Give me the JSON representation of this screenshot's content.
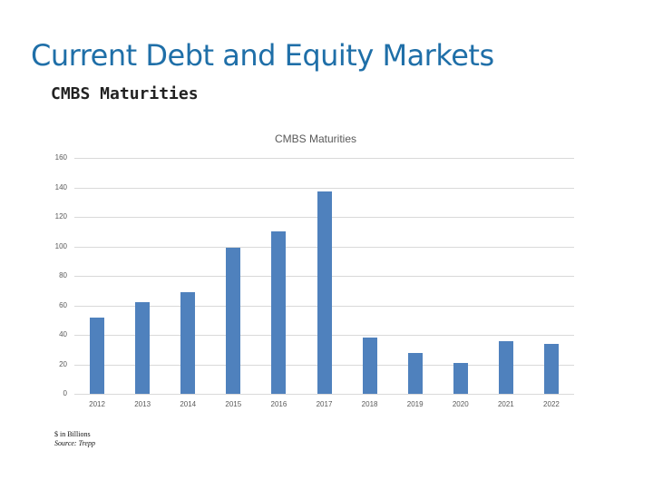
{
  "slide": {
    "title": "Current Debt and Equity Markets",
    "subtitle": "CMBS Maturities"
  },
  "notes": {
    "units": "$ in Billions",
    "source": "Source: Trepp"
  },
  "colors": {
    "title": "#1f6fa8",
    "bar": "#4f81bd",
    "grid": "#d9d9d9"
  },
  "chart_data": {
    "type": "bar",
    "title": "CMBS Maturities",
    "xlabel": "",
    "ylabel": "",
    "categories": [
      "2012",
      "2013",
      "2014",
      "2015",
      "2016",
      "2017",
      "2018",
      "2019",
      "2020",
      "2021",
      "2022"
    ],
    "values": [
      52,
      62,
      69,
      99,
      110,
      137,
      38,
      28,
      21,
      36,
      34
    ],
    "ylim": [
      0,
      160
    ],
    "yticks": [
      "0",
      "20",
      "40",
      "60",
      "80",
      "100",
      "120",
      "140",
      "160"
    ],
    "grid": true,
    "legend": "none",
    "units": "$ in Billions"
  }
}
